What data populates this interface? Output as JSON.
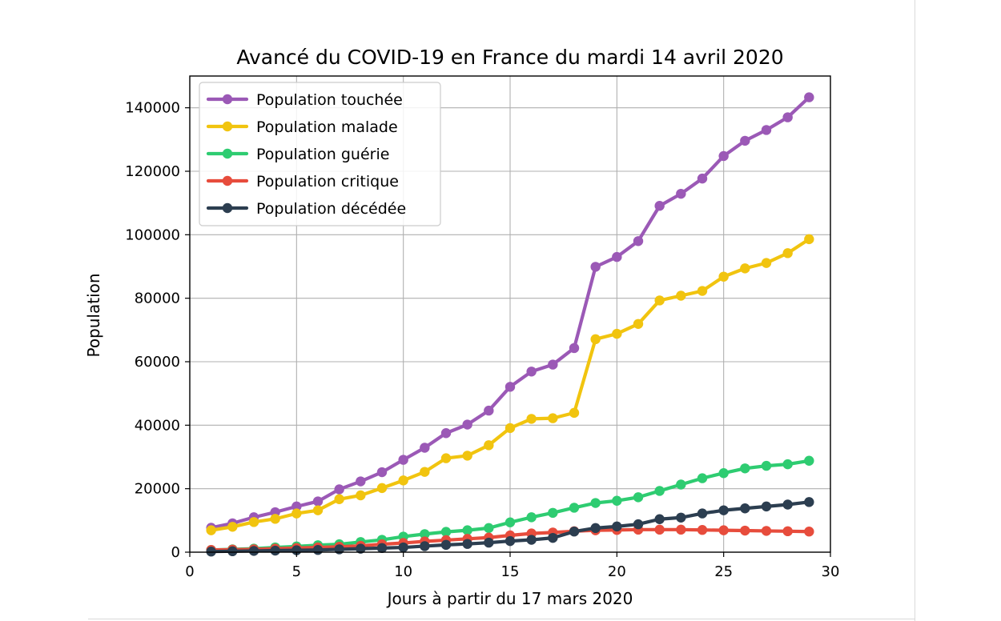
{
  "chart_data": {
    "type": "line",
    "title": "Avancé du COVID-19 en France du mardi 14 avril 2020",
    "xlabel": "Jours à partir du 17 mars 2020",
    "ylabel": "Population",
    "xlim": [
      0,
      30
    ],
    "ylim": [
      0,
      150000
    ],
    "xticks": [
      0,
      5,
      10,
      15,
      20,
      25,
      30
    ],
    "yticks": [
      0,
      20000,
      40000,
      60000,
      80000,
      100000,
      120000,
      140000
    ],
    "grid": true,
    "legend_position": "upper left",
    "x": [
      1,
      2,
      3,
      4,
      5,
      6,
      7,
      8,
      9,
      10,
      11,
      12,
      13,
      14,
      15,
      16,
      17,
      18,
      19,
      20,
      21,
      22,
      23,
      24,
      25,
      26,
      27,
      28,
      29
    ],
    "series": [
      {
        "name": "Population touchée",
        "color": "#9b59b6",
        "values": [
          7700,
          9100,
          11000,
          12600,
          14400,
          16000,
          19800,
          22300,
          25200,
          29100,
          32900,
          37500,
          40200,
          44600,
          52100,
          56900,
          59100,
          64300,
          89900,
          93000,
          98000,
          109100,
          112900,
          117700,
          124800,
          129600,
          133000,
          137000,
          143300
        ]
      },
      {
        "name": "Population malade",
        "color": "#f1c40f",
        "values": [
          6900,
          8000,
          9500,
          10500,
          12200,
          13200,
          16700,
          17900,
          20200,
          22600,
          25300,
          29600,
          30400,
          33700,
          39100,
          42000,
          42200,
          43900,
          67100,
          68800,
          71900,
          79300,
          80800,
          82300,
          86800,
          89400,
          91100,
          94200,
          98600
        ]
      },
      {
        "name": "Population guérie",
        "color": "#2ecc71",
        "values": [
          700,
          900,
          1100,
          1500,
          1800,
          2200,
          2500,
          3200,
          3900,
          4900,
          5700,
          6400,
          6900,
          7600,
          9400,
          11000,
          12400,
          14000,
          15500,
          16200,
          17300,
          19300,
          21300,
          23300,
          24900,
          26400,
          27200,
          27700,
          28800
        ]
      },
      {
        "name": "Population critique",
        "color": "#e74c3c",
        "values": [
          700,
          800,
          900,
          1100,
          1300,
          1500,
          1700,
          2000,
          2500,
          2900,
          3400,
          3800,
          4200,
          4600,
          5300,
          5900,
          6200,
          6600,
          6900,
          7000,
          7100,
          7100,
          7100,
          7000,
          6900,
          6800,
          6700,
          6600,
          6500
        ]
      },
      {
        "name": "Population décédée",
        "color": "#2c3e50",
        "values": [
          200,
          300,
          400,
          500,
          600,
          700,
          900,
          1100,
          1300,
          1500,
          1900,
          2300,
          2600,
          3000,
          3500,
          3900,
          4500,
          6500,
          7600,
          8100,
          8800,
          10400,
          10900,
          12200,
          13200,
          13800,
          14400,
          15000,
          15800
        ]
      }
    ]
  }
}
